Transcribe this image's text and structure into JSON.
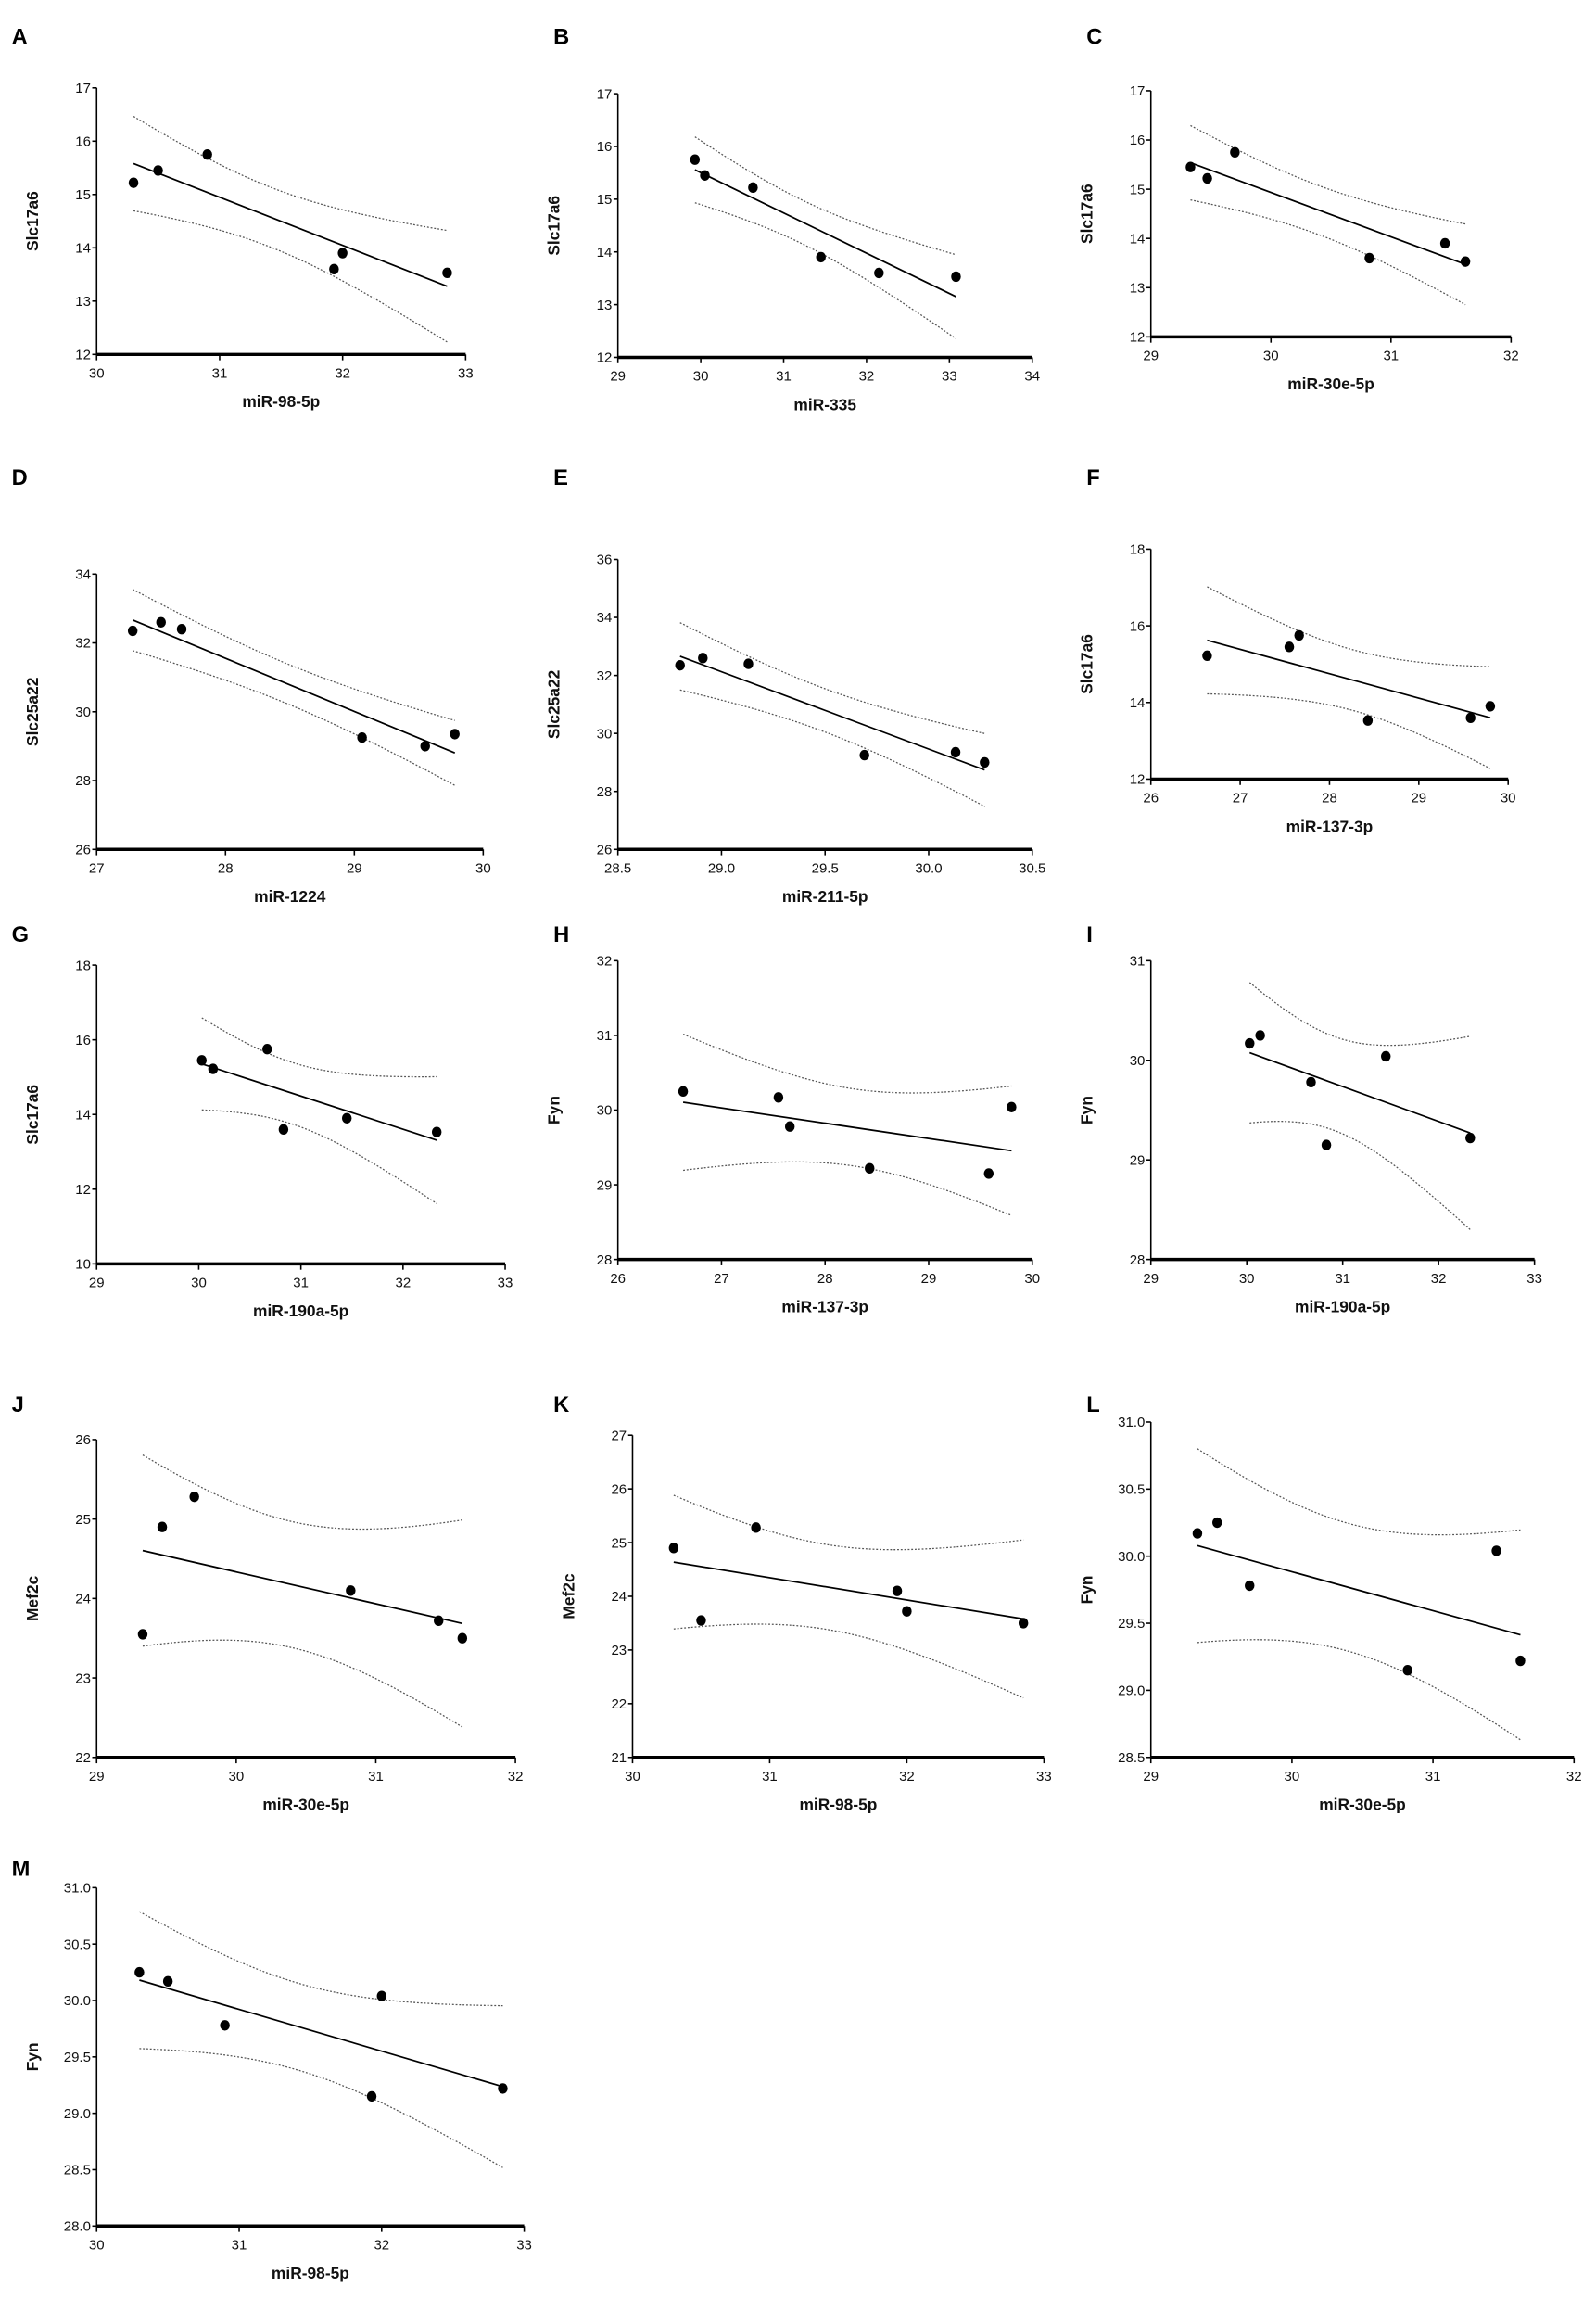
{
  "chart_data": [
    {
      "panel": "A",
      "type": "scatter",
      "fit": "linear",
      "ci": 0.95,
      "xlabel": "miR-98-5p",
      "ylabel": "Slc17a6",
      "xlim": [
        30,
        33
      ],
      "ylim": [
        12,
        17
      ],
      "xticks": [
        "30",
        "31",
        "32",
        "33"
      ],
      "yticks": [
        "12",
        "13",
        "14",
        "15",
        "16",
        "17"
      ],
      "points": [
        [
          30.3,
          15.22
        ],
        [
          30.5,
          15.45
        ],
        [
          30.9,
          15.75
        ],
        [
          31.93,
          13.6
        ],
        [
          32.0,
          13.9
        ],
        [
          32.85,
          13.53
        ]
      ]
    },
    {
      "panel": "B",
      "type": "scatter",
      "fit": "linear",
      "ci": 0.95,
      "xlabel": "miR-335",
      "ylabel": "Slc17a6",
      "xlim": [
        29,
        34
      ],
      "ylim": [
        12,
        17
      ],
      "xticks": [
        "29",
        "30",
        "31",
        "32",
        "33",
        "34"
      ],
      "yticks": [
        "12",
        "13",
        "14",
        "15",
        "16",
        "17"
      ],
      "points": [
        [
          29.93,
          15.75
        ],
        [
          30.05,
          15.45
        ],
        [
          30.63,
          15.22
        ],
        [
          31.45,
          13.9
        ],
        [
          32.15,
          13.6
        ],
        [
          33.08,
          13.53
        ]
      ]
    },
    {
      "panel": "C",
      "type": "scatter",
      "fit": "linear",
      "ci": 0.95,
      "xlabel": "miR-30e-5p",
      "ylabel": "Slc17a6",
      "xlim": [
        29,
        32
      ],
      "ylim": [
        12,
        17
      ],
      "xticks": [
        "29",
        "30",
        "31",
        "32"
      ],
      "yticks": [
        "12",
        "13",
        "14",
        "15",
        "16",
        "17"
      ],
      "points": [
        [
          29.33,
          15.45
        ],
        [
          29.47,
          15.22
        ],
        [
          29.7,
          15.75
        ],
        [
          30.82,
          13.6
        ],
        [
          31.45,
          13.9
        ],
        [
          31.62,
          13.53
        ]
      ]
    },
    {
      "panel": "D",
      "type": "scatter",
      "fit": "linear",
      "ci": 0.95,
      "xlabel": "miR-1224",
      "ylabel": "Slc25a22",
      "xlim": [
        27,
        30
      ],
      "ylim": [
        26,
        34
      ],
      "xticks": [
        "27",
        "28",
        "29",
        "30"
      ],
      "yticks": [
        "26",
        "28",
        "30",
        "32",
        "34"
      ],
      "points": [
        [
          27.28,
          32.35
        ],
        [
          27.5,
          32.6
        ],
        [
          27.66,
          32.4
        ],
        [
          29.06,
          29.25
        ],
        [
          29.55,
          29.0
        ],
        [
          29.78,
          29.35
        ]
      ]
    },
    {
      "panel": "E",
      "type": "scatter",
      "fit": "linear",
      "ci": 0.95,
      "xlabel": "miR-211-5p",
      "ylabel": "Slc25a22",
      "xlim": [
        28.5,
        30.5
      ],
      "ylim": [
        26,
        36
      ],
      "xticks": [
        "28.5",
        "29.0",
        "29.5",
        "30.0",
        "30.5"
      ],
      "yticks": [
        "26",
        "28",
        "30",
        "32",
        "34",
        "36"
      ],
      "points": [
        [
          28.8,
          32.35
        ],
        [
          28.91,
          32.6
        ],
        [
          29.13,
          32.4
        ],
        [
          29.69,
          29.25
        ],
        [
          30.13,
          29.35
        ],
        [
          30.27,
          29.0
        ]
      ]
    },
    {
      "panel": "F",
      "type": "scatter",
      "fit": "linear",
      "ci": 0.95,
      "xlabel": "miR-137-3p",
      "ylabel": "Slc17a6",
      "xlim": [
        26,
        30
      ],
      "ylim": [
        12,
        18
      ],
      "xticks": [
        "26",
        "27",
        "28",
        "29",
        "30"
      ],
      "yticks": [
        "12",
        "14",
        "16",
        "18"
      ],
      "points": [
        [
          26.63,
          15.22
        ],
        [
          27.55,
          15.45
        ],
        [
          27.66,
          15.75
        ],
        [
          28.43,
          13.53
        ],
        [
          29.58,
          13.6
        ],
        [
          29.8,
          13.9
        ]
      ]
    },
    {
      "panel": "G",
      "type": "scatter",
      "fit": "linear",
      "ci": 0.95,
      "xlabel": "miR-190a-5p",
      "ylabel": "Slc17a6",
      "xlim": [
        29,
        33
      ],
      "ylim": [
        10,
        18
      ],
      "xticks": [
        "29",
        "30",
        "31",
        "32",
        "33"
      ],
      "yticks": [
        "10",
        "12",
        "14",
        "16",
        "18"
      ],
      "points": [
        [
          30.03,
          15.45
        ],
        [
          30.14,
          15.22
        ],
        [
          30.67,
          15.75
        ],
        [
          30.83,
          13.6
        ],
        [
          31.45,
          13.9
        ],
        [
          32.33,
          13.53
        ]
      ]
    },
    {
      "panel": "H",
      "type": "scatter",
      "fit": "linear",
      "ci": 0.95,
      "xlabel": "miR-137-3p",
      "ylabel": "Fyn",
      "xlim": [
        26,
        30
      ],
      "ylim": [
        28,
        32
      ],
      "xticks": [
        "26",
        "27",
        "28",
        "29",
        "30"
      ],
      "yticks": [
        "28",
        "29",
        "30",
        "31",
        "32"
      ],
      "points": [
        [
          26.63,
          30.25
        ],
        [
          27.55,
          30.17
        ],
        [
          27.66,
          29.78
        ],
        [
          28.43,
          29.22
        ],
        [
          29.58,
          29.15
        ],
        [
          29.8,
          30.04
        ]
      ]
    },
    {
      "panel": "I",
      "type": "scatter",
      "fit": "linear",
      "ci": 0.95,
      "xlabel": "miR-190a-5p",
      "ylabel": "Fyn",
      "xlim": [
        29,
        33
      ],
      "ylim": [
        28,
        31
      ],
      "xticks": [
        "29",
        "30",
        "31",
        "32",
        "33"
      ],
      "yticks": [
        "28",
        "29",
        "30",
        "31"
      ],
      "points": [
        [
          30.03,
          30.17
        ],
        [
          30.14,
          30.25
        ],
        [
          30.67,
          29.78
        ],
        [
          30.83,
          29.15
        ],
        [
          31.45,
          30.04
        ],
        [
          32.33,
          29.22
        ]
      ]
    },
    {
      "panel": "J",
      "type": "scatter",
      "fit": "linear",
      "ci": 0.95,
      "xlabel": "miR-30e-5p",
      "ylabel": "Mef2c",
      "xlim": [
        29,
        32
      ],
      "ylim": [
        22,
        26
      ],
      "xticks": [
        "29",
        "30",
        "31",
        "32"
      ],
      "yticks": [
        "22",
        "23",
        "24",
        "25",
        "26"
      ],
      "points": [
        [
          29.33,
          23.55
        ],
        [
          29.47,
          24.9
        ],
        [
          29.7,
          25.28
        ],
        [
          30.82,
          24.1
        ],
        [
          31.45,
          23.72
        ],
        [
          31.62,
          23.5
        ]
      ]
    },
    {
      "panel": "K",
      "type": "scatter",
      "fit": "linear",
      "ci": 0.95,
      "xlabel": "miR-98-5p",
      "ylabel": "Mef2c",
      "xlim": [
        30,
        33
      ],
      "ylim": [
        21,
        27
      ],
      "xticks": [
        "30",
        "31",
        "32",
        "33"
      ],
      "yticks": [
        "21",
        "22",
        "23",
        "24",
        "25",
        "26",
        "27"
      ],
      "points": [
        [
          30.3,
          24.9
        ],
        [
          30.5,
          23.55
        ],
        [
          30.9,
          25.28
        ],
        [
          31.93,
          24.1
        ],
        [
          32.0,
          23.72
        ],
        [
          32.85,
          23.5
        ]
      ]
    },
    {
      "panel": "L",
      "type": "scatter",
      "fit": "linear",
      "ci": 0.95,
      "xlabel": "miR-30e-5p",
      "ylabel": "Fyn",
      "xlim": [
        29,
        32
      ],
      "ylim": [
        28.5,
        31
      ],
      "xticks": [
        "29",
        "30",
        "31",
        "32"
      ],
      "yticks": [
        "28.5",
        "29.0",
        "29.5",
        "30.0",
        "30.5",
        "31.0"
      ],
      "points": [
        [
          29.33,
          30.17
        ],
        [
          29.47,
          30.25
        ],
        [
          29.7,
          29.78
        ],
        [
          30.82,
          29.15
        ],
        [
          31.45,
          30.04
        ],
        [
          31.62,
          29.22
        ]
      ]
    },
    {
      "panel": "M",
      "type": "scatter",
      "fit": "linear",
      "ci": 0.95,
      "xlabel": "miR-98-5p",
      "ylabel": "Fyn",
      "xlim": [
        30,
        33
      ],
      "ylim": [
        28,
        31
      ],
      "xticks": [
        "30",
        "31",
        "32",
        "33"
      ],
      "yticks": [
        "28.0",
        "28.5",
        "29.0",
        "29.5",
        "30.0",
        "30.5",
        "31.0"
      ],
      "points": [
        [
          30.3,
          30.25
        ],
        [
          30.5,
          30.17
        ],
        [
          30.9,
          29.78
        ],
        [
          31.93,
          29.15
        ],
        [
          32.0,
          30.04
        ],
        [
          32.85,
          29.22
        ]
      ]
    }
  ]
}
